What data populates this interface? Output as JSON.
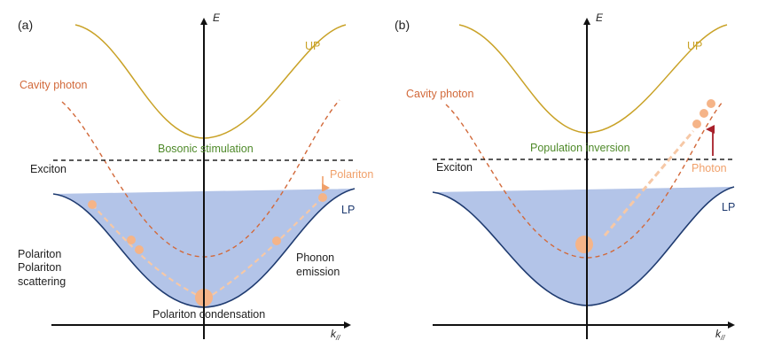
{
  "colors": {
    "up": "#c9a227",
    "lp_line": "#1f3b70",
    "lp_fill": "#b3c4e8",
    "cavity": "#d2693a",
    "exciton": "#222222",
    "green_text": "#4f8a2a",
    "polariton_dot": "#f5b488",
    "orange_text": "#f0a06a",
    "arrow_red": "#a8202a",
    "axis": "#111111"
  },
  "panel_a": {
    "label": "(a)",
    "e_axis": "E",
    "k_axis": "k",
    "k_sub": "//",
    "up": "UP",
    "lp": "LP",
    "cavity_photon": "Cavity photon",
    "exciton": "Exciton",
    "bosonic_stimulation": "Bosonic  stimulation",
    "polariton": "Polariton",
    "scattering_line1": "Polariton",
    "scattering_line2": "Polariton",
    "scattering_line3": "scattering",
    "phonon_line1": "Phonon",
    "phonon_line2": "emission",
    "condensation": "Polariton condensation"
  },
  "panel_b": {
    "label": "(b)",
    "e_axis": "E",
    "k_axis": "k",
    "k_sub": "//",
    "up": "UP",
    "lp": "LP",
    "cavity_photon": "Cavity photon",
    "exciton": "Exciton",
    "population_inversion": "Population inversion",
    "photon": "Photon"
  }
}
